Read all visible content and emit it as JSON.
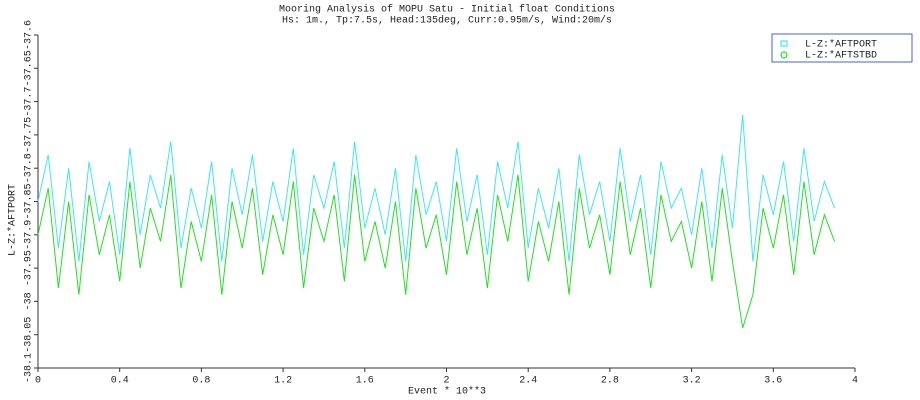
{
  "chart_data": {
    "type": "line",
    "title": "Mooring Analysis of MOPU Satu - Initial float Conditions",
    "subtitle": "Hs: 1m., Tp:7.5s, Head:135deg, Curr:0.95m/s, Wind:20m/s",
    "x_label": "Event * 10**3",
    "y_label": "L-Z:*AFTPORT",
    "legend": "upper right",
    "x": [
      0,
      0.05,
      0.1,
      0.15,
      0.2,
      0.25,
      0.3,
      0.35,
      0.4,
      0.45,
      0.5,
      0.55,
      0.6,
      0.65,
      0.7,
      0.75,
      0.8,
      0.85,
      0.9,
      0.95,
      1,
      1.05,
      1.1,
      1.15,
      1.2,
      1.25,
      1.3,
      1.35,
      1.4,
      1.45,
      1.5,
      1.55,
      1.6,
      1.65,
      1.7,
      1.75,
      1.8,
      1.85,
      1.9,
      1.95,
      2,
      2.05,
      2.1,
      2.15,
      2.2,
      2.25,
      2.3,
      2.35,
      2.4,
      2.45,
      2.5,
      2.55,
      2.6,
      2.65,
      2.7,
      2.75,
      2.8,
      2.85,
      2.9,
      2.95,
      3,
      3.05,
      3.1,
      3.15,
      3.2,
      3.25,
      3.3,
      3.35,
      3.4,
      3.45,
      3.5,
      3.55,
      3.6,
      3.65,
      3.7,
      3.75,
      3.8,
      3.85,
      3.9
    ],
    "series": [
      {
        "name": "L-Z:*AFTPORT",
        "color": "#3ee6f2",
        "values": [
          -37.85,
          -37.78,
          -37.92,
          -37.8,
          -37.94,
          -37.79,
          -37.88,
          -37.82,
          -37.93,
          -37.77,
          -37.9,
          -37.81,
          -37.86,
          -37.76,
          -37.92,
          -37.83,
          -37.89,
          -37.79,
          -37.94,
          -37.8,
          -37.87,
          -37.78,
          -37.91,
          -37.82,
          -37.88,
          -37.77,
          -37.93,
          -37.81,
          -37.86,
          -37.79,
          -37.92,
          -37.76,
          -37.89,
          -37.83,
          -37.9,
          -37.8,
          -37.94,
          -37.78,
          -37.87,
          -37.82,
          -37.91,
          -37.77,
          -37.88,
          -37.81,
          -37.93,
          -37.79,
          -37.86,
          -37.76,
          -37.92,
          -37.83,
          -37.89,
          -37.8,
          -37.94,
          -37.78,
          -37.87,
          -37.82,
          -37.91,
          -37.77,
          -37.88,
          -37.81,
          -37.93,
          -37.79,
          -37.86,
          -37.83,
          -37.9,
          -37.8,
          -37.92,
          -37.78,
          -37.89,
          -37.72,
          -37.94,
          -37.81,
          -37.87,
          -37.79,
          -37.91,
          -37.77,
          -37.88,
          -37.82,
          -37.86
        ]
      },
      {
        "name": "L-Z:*AFTSTBD",
        "color": "#22e022",
        "values": [
          -37.9,
          -37.83,
          -37.98,
          -37.85,
          -37.99,
          -37.84,
          -37.93,
          -37.87,
          -37.97,
          -37.82,
          -37.95,
          -37.86,
          -37.91,
          -37.81,
          -37.98,
          -37.88,
          -37.94,
          -37.84,
          -37.99,
          -37.85,
          -37.92,
          -37.83,
          -37.96,
          -37.87,
          -37.93,
          -37.82,
          -37.98,
          -37.86,
          -37.91,
          -37.84,
          -37.97,
          -37.81,
          -37.94,
          -37.88,
          -37.95,
          -37.85,
          -37.99,
          -37.83,
          -37.92,
          -37.87,
          -37.96,
          -37.82,
          -37.93,
          -37.86,
          -37.98,
          -37.84,
          -37.91,
          -37.81,
          -37.97,
          -37.88,
          -37.94,
          -37.85,
          -37.99,
          -37.83,
          -37.92,
          -37.87,
          -37.96,
          -37.82,
          -37.93,
          -37.86,
          -37.98,
          -37.84,
          -37.91,
          -37.88,
          -37.95,
          -37.85,
          -37.97,
          -37.83,
          -37.94,
          -38.04,
          -37.99,
          -37.86,
          -37.92,
          -37.84,
          -37.96,
          -37.82,
          -37.93,
          -37.87,
          -37.91
        ]
      }
    ],
    "xlim": [
      0,
      4
    ],
    "xticks": [
      0,
      0.4,
      0.8,
      1.2,
      1.6,
      2,
      2.4,
      2.8,
      3.2,
      3.6,
      4
    ],
    "ylim": [
      -38.1,
      -37.6
    ],
    "yticks": [
      -37.6,
      -37.65,
      -37.7,
      -37.75,
      -37.8,
      -37.85,
      -37.9,
      -37.95,
      -38,
      -38.05,
      -38.1
    ]
  }
}
